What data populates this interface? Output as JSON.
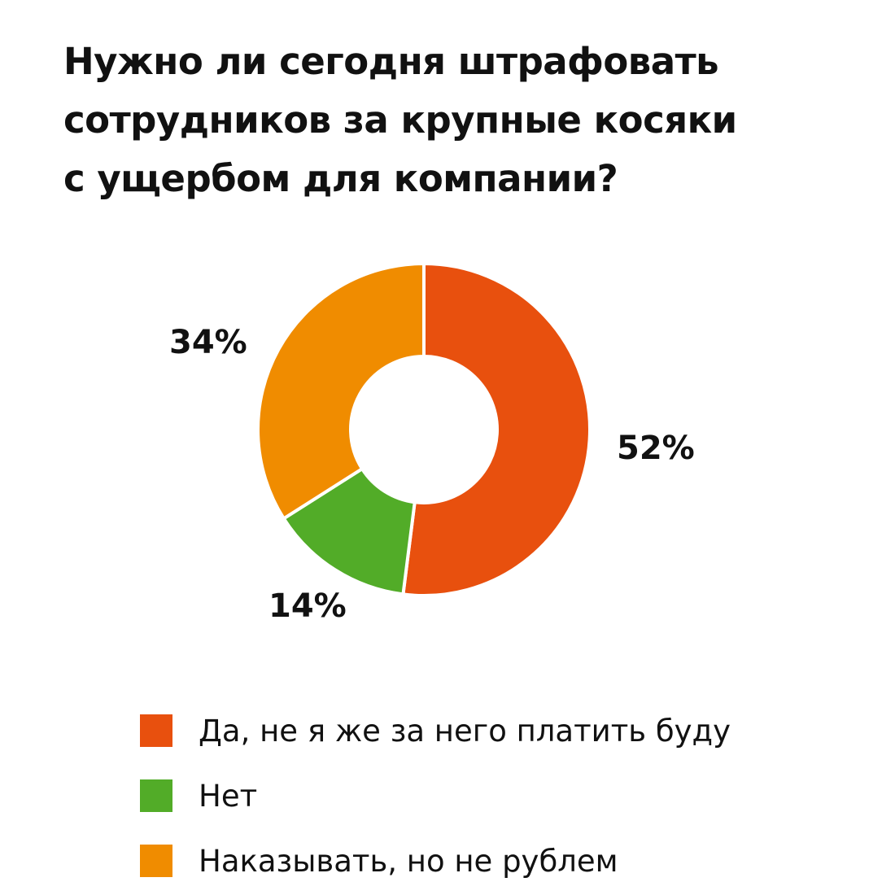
{
  "title": {
    "lines": [
      "Нужно ли сегодня штрафовать",
      "сотрудников за крупные косяки",
      "с ущербом для компании?"
    ]
  },
  "labels": {
    "yes": "52%",
    "no": "14%",
    "punish": "34%"
  },
  "legend": [
    {
      "label": "Да, не я же за него платить буду",
      "color": "#e8500e"
    },
    {
      "label": "Нет",
      "color": "#52ac28"
    },
    {
      "label": "Наказывать, но не рублем",
      "color": "#f08c00"
    }
  ],
  "chart_data": {
    "type": "pie",
    "subtype": "donut",
    "title": "Нужно ли сегодня штрафовать сотрудников за крупные косяки с ущербом для компании?",
    "categories": [
      "Да, не я же за него платить буду",
      "Нет",
      "Наказывать, но не рублем"
    ],
    "values": [
      52,
      14,
      34
    ],
    "unit": "%",
    "colors": [
      "#e8500e",
      "#52ac28",
      "#f08c00"
    ],
    "start_angle": "12 o'clock, clockwise",
    "legend_position": "bottom"
  }
}
